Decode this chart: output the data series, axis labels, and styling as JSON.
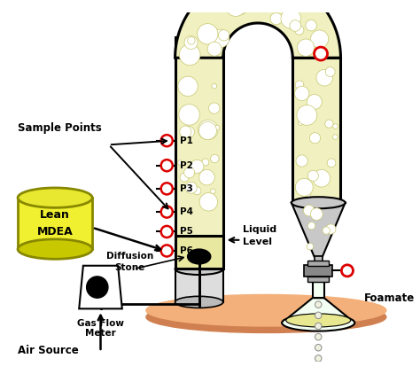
{
  "bg_color": "#ffffff",
  "foam_color": "#f0f0c0",
  "tube_color": "#000000",
  "tube_lw": 2.2,
  "base_color": "#f4b07a",
  "lean_mdea_color": "#f0f030",
  "lean_mdea_top": "#e8e830",
  "lean_mdea_edge": "#888800",
  "sample_points": [
    "P1",
    "P2",
    "P3",
    "P4",
    "P5",
    "P6"
  ],
  "red_circle_color": "#dd0000",
  "black_fill": "#000000",
  "funnel_color": "#c8c8c8",
  "flask_color": "#f8fff8"
}
